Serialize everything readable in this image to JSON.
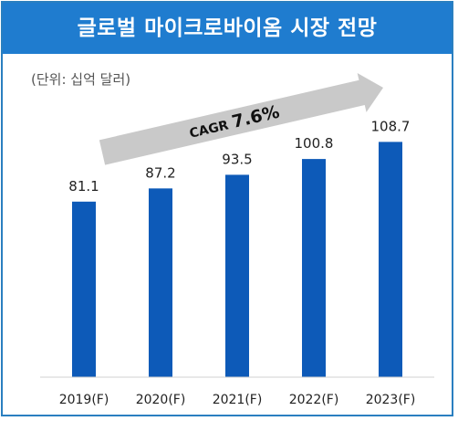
{
  "chart_data": {
    "type": "bar",
    "title": "글로벌 마이크로바이옴 시장 전망",
    "unit_label": "(단위: 십억 달러)",
    "categories": [
      "2019(F)",
      "2020(F)",
      "2021(F)",
      "2022(F)",
      "2023(F)"
    ],
    "values": [
      81.1,
      87.2,
      93.5,
      100.8,
      108.7
    ],
    "value_labels": [
      "81.1",
      "87.2",
      "93.5",
      "100.8",
      "108.7"
    ],
    "annotation": {
      "prefix": "CAGR",
      "value": "7.6%"
    },
    "bar_color": "#0d5ab8",
    "title_bg_color": "#1f7ccf",
    "arrow_color": "#c9c9c9",
    "ylim": [
      0,
      120
    ],
    "grid": false,
    "legend": "none"
  }
}
